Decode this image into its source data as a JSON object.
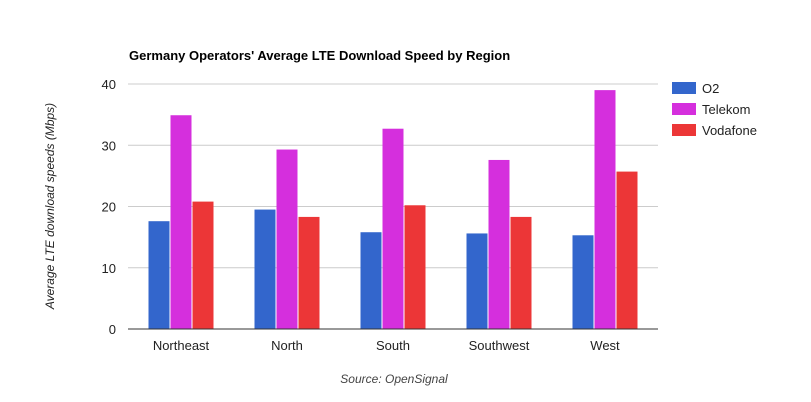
{
  "chart_data": {
    "type": "bar",
    "title": "Germany Operators' Average LTE Download Speed by Region",
    "xlabel": "",
    "ylabel": "Average LTE download speeds (Mbps)",
    "source": "Source: OpenSignal",
    "categories": [
      "Northeast",
      "North",
      "South",
      "Southwest",
      "West"
    ],
    "series": [
      {
        "name": "O2",
        "color": "#3366cc",
        "values": [
          17.6,
          19.5,
          15.8,
          15.6,
          15.3
        ]
      },
      {
        "name": "Telekom",
        "color": "#d52fdd",
        "values": [
          34.9,
          29.3,
          32.7,
          27.6,
          39.0
        ]
      },
      {
        "name": "Vodafone",
        "color": "#ec3637",
        "values": [
          20.8,
          18.3,
          20.2,
          18.3,
          25.7
        ]
      }
    ],
    "ylim": [
      0,
      40
    ],
    "yticks": [
      0,
      10,
      20,
      30,
      40
    ],
    "grid": true,
    "legend_position": "right"
  }
}
